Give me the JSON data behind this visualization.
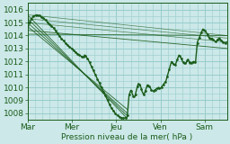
{
  "xlabel": "Pression niveau de la mer( hPa )",
  "xlabels": [
    "Mar",
    "Mer",
    "Jeu",
    "Ven",
    "Sam"
  ],
  "xticks": [
    0,
    24,
    48,
    72,
    96
  ],
  "xtick_sam": 96,
  "yticks": [
    1008,
    1009,
    1010,
    1011,
    1012,
    1013,
    1014,
    1015,
    1016
  ],
  "ylim": [
    1007.5,
    1016.5
  ],
  "xlim": [
    0,
    108
  ],
  "bg_color": "#cce8e8",
  "grid_color": "#99cccc",
  "line_color": "#1a5c1a",
  "font_size": 6.5,
  "fan_starts": [
    [
      0,
      1015.6
    ],
    [
      0,
      1015.3
    ],
    [
      0,
      1015.0
    ],
    [
      0,
      1014.7
    ],
    [
      0,
      1014.4
    ],
    [
      0,
      1014.1
    ]
  ],
  "fan_ends": [
    [
      54,
      1007.6
    ],
    [
      54,
      1007.8
    ],
    [
      54,
      1008.0
    ],
    [
      54,
      1008.3
    ],
    [
      54,
      1013.0
    ],
    [
      54,
      1014.0
    ]
  ],
  "main_waypoints": [
    [
      0,
      1014.8
    ],
    [
      1,
      1015.0
    ],
    [
      3,
      1015.5
    ],
    [
      5,
      1015.6
    ],
    [
      7,
      1015.5
    ],
    [
      9,
      1015.3
    ],
    [
      11,
      1015.0
    ],
    [
      14,
      1014.6
    ],
    [
      17,
      1014.0
    ],
    [
      20,
      1013.5
    ],
    [
      22,
      1013.2
    ],
    [
      24,
      1013.0
    ],
    [
      26,
      1012.7
    ],
    [
      28,
      1012.5
    ],
    [
      30,
      1012.3
    ],
    [
      31,
      1012.5
    ],
    [
      32,
      1012.3
    ],
    [
      33,
      1012.1
    ],
    [
      34,
      1011.8
    ],
    [
      35,
      1011.5
    ],
    [
      36,
      1011.2
    ],
    [
      37,
      1010.9
    ],
    [
      38,
      1010.6
    ],
    [
      39,
      1010.3
    ],
    [
      40,
      1010.0
    ],
    [
      41,
      1009.7
    ],
    [
      42,
      1009.4
    ],
    [
      43,
      1009.1
    ],
    [
      44,
      1008.8
    ],
    [
      45,
      1008.5
    ],
    [
      46,
      1008.3
    ],
    [
      47,
      1008.1
    ],
    [
      48,
      1007.9
    ],
    [
      49,
      1007.8
    ],
    [
      50,
      1007.7
    ],
    [
      51,
      1007.65
    ],
    [
      52,
      1007.6
    ],
    [
      53,
      1007.65
    ],
    [
      54,
      1007.7
    ],
    [
      55,
      1009.4
    ],
    [
      56,
      1009.8
    ],
    [
      57,
      1009.4
    ],
    [
      58,
      1009.2
    ],
    [
      59,
      1009.8
    ],
    [
      60,
      1010.3
    ],
    [
      61,
      1010.2
    ],
    [
      62,
      1009.7
    ],
    [
      63,
      1009.4
    ],
    [
      64,
      1009.8
    ],
    [
      65,
      1010.2
    ],
    [
      66,
      1010.1
    ],
    [
      67,
      1009.8
    ],
    [
      68,
      1009.7
    ],
    [
      69,
      1009.8
    ],
    [
      70,
      1009.9
    ],
    [
      71,
      1010.0
    ],
    [
      72,
      1009.9
    ],
    [
      73,
      1010.1
    ],
    [
      74,
      1010.3
    ],
    [
      75,
      1010.5
    ],
    [
      76,
      1011.0
    ],
    [
      77,
      1011.5
    ],
    [
      78,
      1012.0
    ],
    [
      79,
      1011.8
    ],
    [
      80,
      1011.7
    ],
    [
      81,
      1012.1
    ],
    [
      82,
      1012.5
    ],
    [
      83,
      1012.3
    ],
    [
      84,
      1012.0
    ],
    [
      85,
      1011.8
    ],
    [
      86,
      1011.9
    ],
    [
      87,
      1012.2
    ],
    [
      88,
      1011.8
    ],
    [
      89,
      1011.9
    ],
    [
      90,
      1012.0
    ],
    [
      91,
      1011.9
    ],
    [
      92,
      1013.5
    ],
    [
      93,
      1013.8
    ],
    [
      94,
      1014.2
    ],
    [
      95,
      1014.5
    ],
    [
      96,
      1014.4
    ],
    [
      97,
      1014.2
    ],
    [
      98,
      1013.9
    ],
    [
      99,
      1013.7
    ],
    [
      100,
      1013.8
    ],
    [
      101,
      1013.6
    ],
    [
      102,
      1013.5
    ],
    [
      103,
      1013.7
    ],
    [
      104,
      1013.8
    ],
    [
      105,
      1013.6
    ],
    [
      106,
      1013.5
    ],
    [
      107,
      1013.4
    ],
    [
      108,
      1013.5
    ]
  ]
}
